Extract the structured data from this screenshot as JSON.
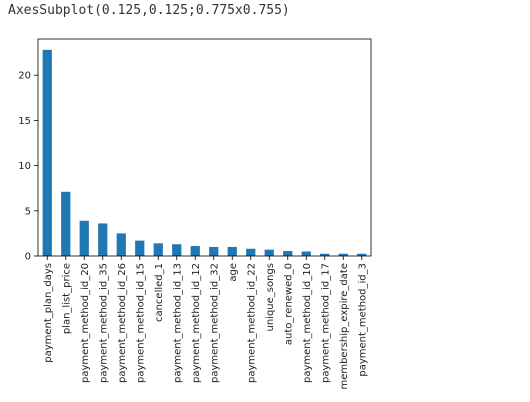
{
  "output_repr": "AxesSubplot(0.125,0.125;0.775x0.755)",
  "colors": {
    "bar": "#1f77b4",
    "axis": "#000000",
    "text": "#222222"
  },
  "chart_data": {
    "type": "bar",
    "title": "",
    "xlabel": "",
    "ylabel": "",
    "grid": false,
    "ylim": [
      0,
      24
    ],
    "yticks": [
      0,
      5,
      10,
      15,
      20
    ],
    "categories": [
      "payment_plan_days",
      "plan_list_price",
      "payment_method_id_20",
      "payment_method_id_35",
      "payment_method_id_26",
      "payment_method_id_15",
      "cancelled_1",
      "payment_method_id_13",
      "payment_method_id_12",
      "payment_method_id_32",
      "age",
      "payment_method_id_22",
      "unique_songs",
      "auto_renewed_0",
      "payment_method_id_10",
      "payment_method_id_17",
      "membership_expire_date",
      "payment_method_id_3"
    ],
    "values": [
      22.8,
      7.1,
      3.9,
      3.6,
      2.5,
      1.7,
      1.4,
      1.3,
      1.1,
      1.0,
      1.0,
      0.8,
      0.7,
      0.55,
      0.5,
      0.25,
      0.25,
      0.25
    ]
  }
}
